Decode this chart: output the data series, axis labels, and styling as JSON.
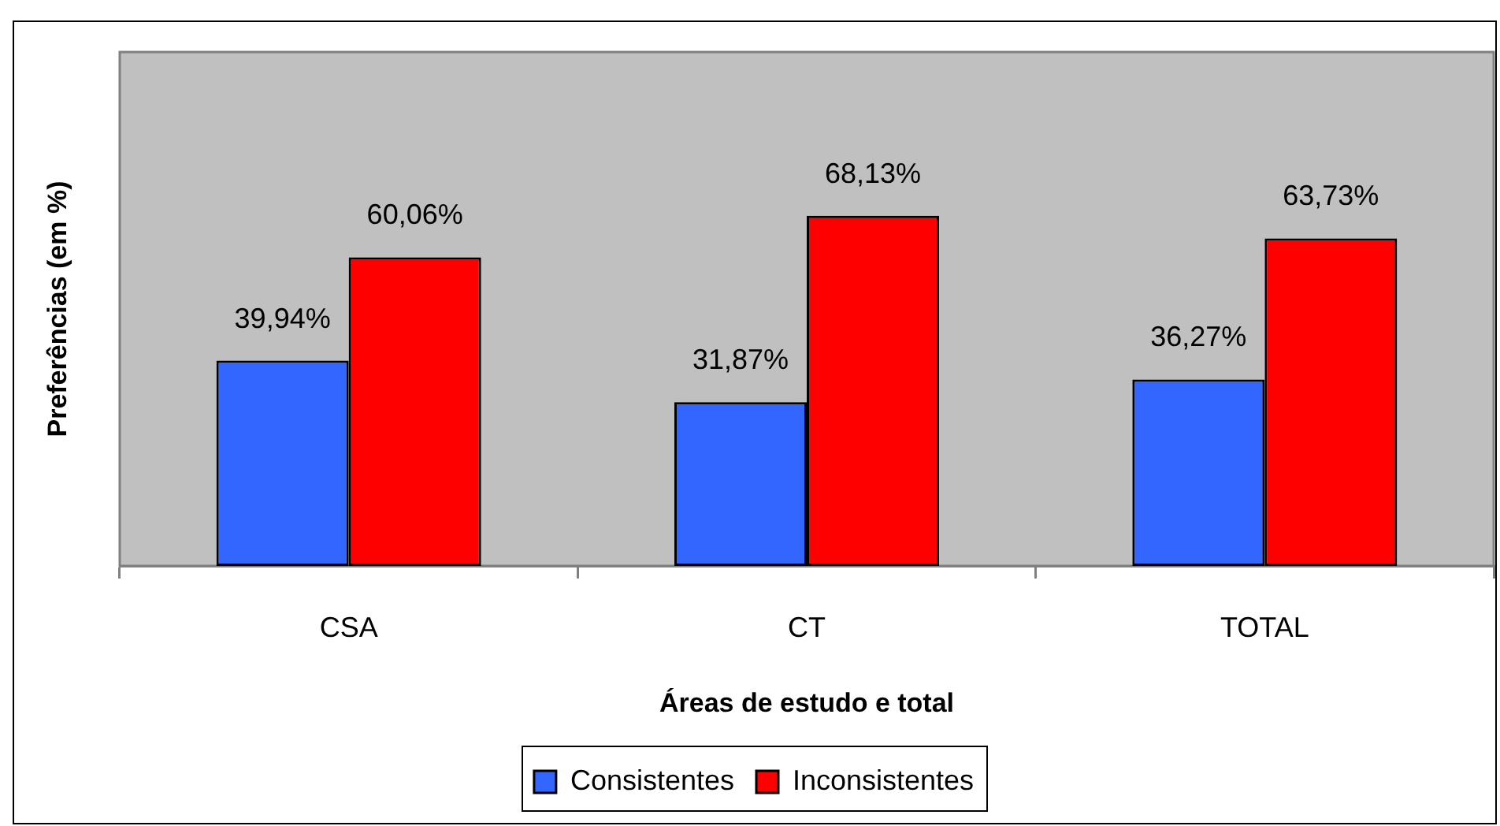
{
  "chart_data": {
    "type": "bar",
    "xlabel": "Áreas de estudo e total",
    "ylabel": "Preferências (em %)",
    "categories": [
      "CSA",
      "CT",
      "TOTAL"
    ],
    "series": [
      {
        "name": "Consistentes",
        "color": "#3366ff",
        "values": [
          39.94,
          31.87,
          36.27
        ],
        "value_labels": [
          "39,94%",
          "31,87%",
          "36,27%"
        ]
      },
      {
        "name": "Inconsistentes",
        "color": "#ff0000",
        "values": [
          60.06,
          68.13,
          63.73
        ],
        "value_labels": [
          "60,06%",
          "68,13%",
          "63,73%"
        ]
      }
    ],
    "ylim": [
      0,
      100
    ],
    "tick_labels": "x",
    "legend": "bottom"
  }
}
